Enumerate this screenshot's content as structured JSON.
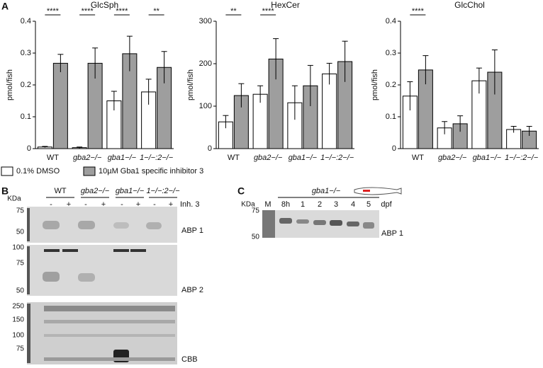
{
  "panels": {
    "a": "A",
    "b": "B",
    "c": "C"
  },
  "chart_data": [
    {
      "type": "bar",
      "title": "GlcSph",
      "y_label": "pmol/fish",
      "categories": [
        "WT",
        "gba2−/−",
        "gba1−/−",
        "1−/−:2−/−"
      ],
      "ylim": [
        0,
        0.4
      ],
      "yticks": [
        0,
        0.1,
        0.2,
        0.3,
        0.4
      ],
      "series": [
        {
          "name": "0.1% DMSO",
          "color": "#ffffff",
          "values": [
            0.005,
            0.003,
            0.15,
            0.178
          ],
          "errors": [
            0.002,
            0.002,
            0.03,
            0.04
          ]
        },
        {
          "name": "10µM Gba1 specific inhibitor 3",
          "color": "#9e9e9e",
          "values": [
            0.268,
            0.268,
            0.298,
            0.255
          ],
          "errors": [
            0.028,
            0.048,
            0.055,
            0.05
          ]
        }
      ],
      "annotations": [
        "****",
        "****",
        "****",
        "**"
      ]
    },
    {
      "type": "bar",
      "title": "HexCer",
      "y_label": "pmol/fish",
      "categories": [
        "WT",
        "gba2−/−",
        "gba1−/−",
        "1−/−:2−/−"
      ],
      "ylim": [
        0,
        300
      ],
      "yticks": [
        0,
        100,
        200,
        300
      ],
      "series": [
        {
          "color": "#ffffff",
          "values": [
            63,
            128,
            108,
            176
          ],
          "errors": [
            15,
            20,
            40,
            25
          ]
        },
        {
          "color": "#9e9e9e",
          "values": [
            125,
            211,
            148,
            205
          ],
          "errors": [
            28,
            48,
            48,
            48
          ]
        }
      ],
      "annotations": [
        "**",
        "****",
        null,
        null
      ]
    },
    {
      "type": "bar",
      "title": "GlcChol",
      "y_label": "pmol/fish",
      "categories": [
        "WT",
        "gba2−/−",
        "gba1−/−",
        "1−/−:2−/−"
      ],
      "ylim": [
        0,
        0.4
      ],
      "yticks": [
        0,
        0.1,
        0.2,
        0.3,
        0.4
      ],
      "series": [
        {
          "color": "#ffffff",
          "values": [
            0.165,
            0.065,
            0.213,
            0.06
          ],
          "errors": [
            0.045,
            0.02,
            0.04,
            0.01
          ]
        },
        {
          "color": "#9e9e9e",
          "values": [
            0.247,
            0.078,
            0.24,
            0.055
          ],
          "errors": [
            0.045,
            0.025,
            0.07,
            0.015
          ]
        }
      ],
      "annotations": [
        "****",
        null,
        null,
        null
      ]
    }
  ],
  "blot_b": {
    "lane_groups": [
      "WT",
      "gba2−/−",
      "gba1−/−",
      "1−/−:2−/−"
    ],
    "lanes": [
      "-",
      "+",
      "-",
      "+",
      "-",
      "+",
      "-",
      "+"
    ],
    "treatment": "Inh. 3",
    "unit": "KDa",
    "gels": [
      {
        "markers": [
          75,
          50
        ],
        "label": "ABP 1"
      },
      {
        "markers": [
          100,
          75,
          50
        ],
        "label": "ABP 2"
      },
      {
        "markers": [
          250,
          150,
          100,
          75
        ],
        "label": "CBB"
      }
    ]
  },
  "blot_c": {
    "unit": "KDa",
    "group": "gba1−/−",
    "lanes": [
      "M",
      "8h",
      "1",
      "2",
      "3",
      "4",
      "5"
    ],
    "lanes_unit": "dpf",
    "markers": [
      75,
      50
    ],
    "label": "ABP 1"
  }
}
